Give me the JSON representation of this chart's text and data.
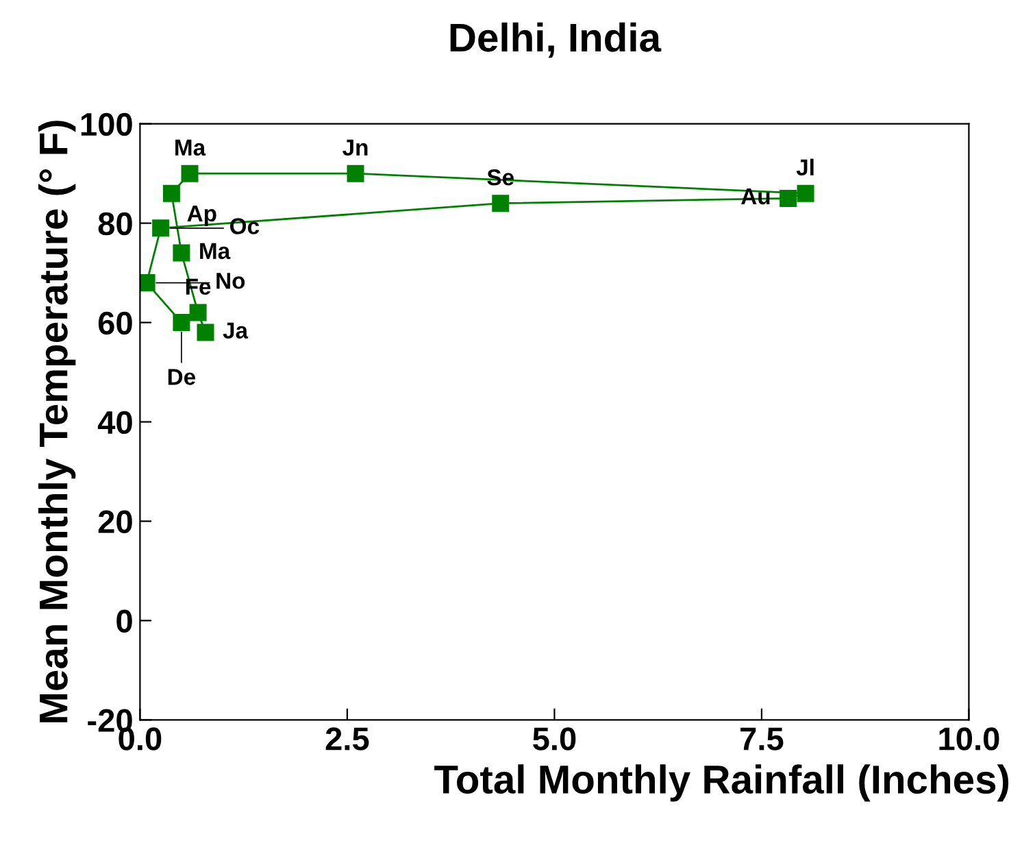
{
  "chart_data": {
    "type": "line",
    "title": "Delhi, India",
    "xlabel": "Total Monthly Rainfall (Inches)",
    "ylabel": "Mean Monthly Temperature (° F)",
    "x": [
      0.79,
      0.7,
      0.5,
      0.38,
      0.6,
      2.6,
      8.03,
      7.82,
      4.35,
      0.25,
      0.08,
      0.5
    ],
    "series": [
      {
        "color": "#008000",
        "values": [
          58,
          62,
          74,
          86,
          90,
          90,
          86,
          85,
          84,
          79,
          68,
          60
        ]
      }
    ],
    "annotations": [
      {
        "text": "Ja",
        "x": 0.79,
        "y": 58
      },
      {
        "text": "Fe",
        "x": 0.7,
        "y": 62
      },
      {
        "text": "Ma",
        "x": 0.5,
        "y": 74
      },
      {
        "text": "Ap",
        "x": 0.38,
        "y": 86
      },
      {
        "text": "Ma",
        "x": 0.6,
        "y": 90
      },
      {
        "text": "Jn",
        "x": 2.6,
        "y": 90
      },
      {
        "text": "Jl",
        "x": 8.03,
        "y": 86
      },
      {
        "text": "Au",
        "x": 7.82,
        "y": 85
      },
      {
        "text": "Se",
        "x": 4.35,
        "y": 84
      },
      {
        "text": "Oc",
        "x": 0.25,
        "y": 79
      },
      {
        "text": "No",
        "x": 0.08,
        "y": 68
      },
      {
        "text": "De",
        "x": 0.5,
        "y": 60
      }
    ],
    "xlim": [
      0,
      10
    ],
    "xticks": [
      {
        "value": 0,
        "label": "0.0"
      },
      2.5,
      {
        "value": 5,
        "label": "5.0"
      },
      7.5,
      {
        "value": 10,
        "label": "10.0"
      }
    ],
    "ylim": [
      -20,
      100
    ],
    "yticks": [
      -20,
      0,
      20,
      40,
      60,
      80,
      100
    ],
    "marker": "square",
    "line_style": "solid",
    "grid": false,
    "legend": false
  }
}
